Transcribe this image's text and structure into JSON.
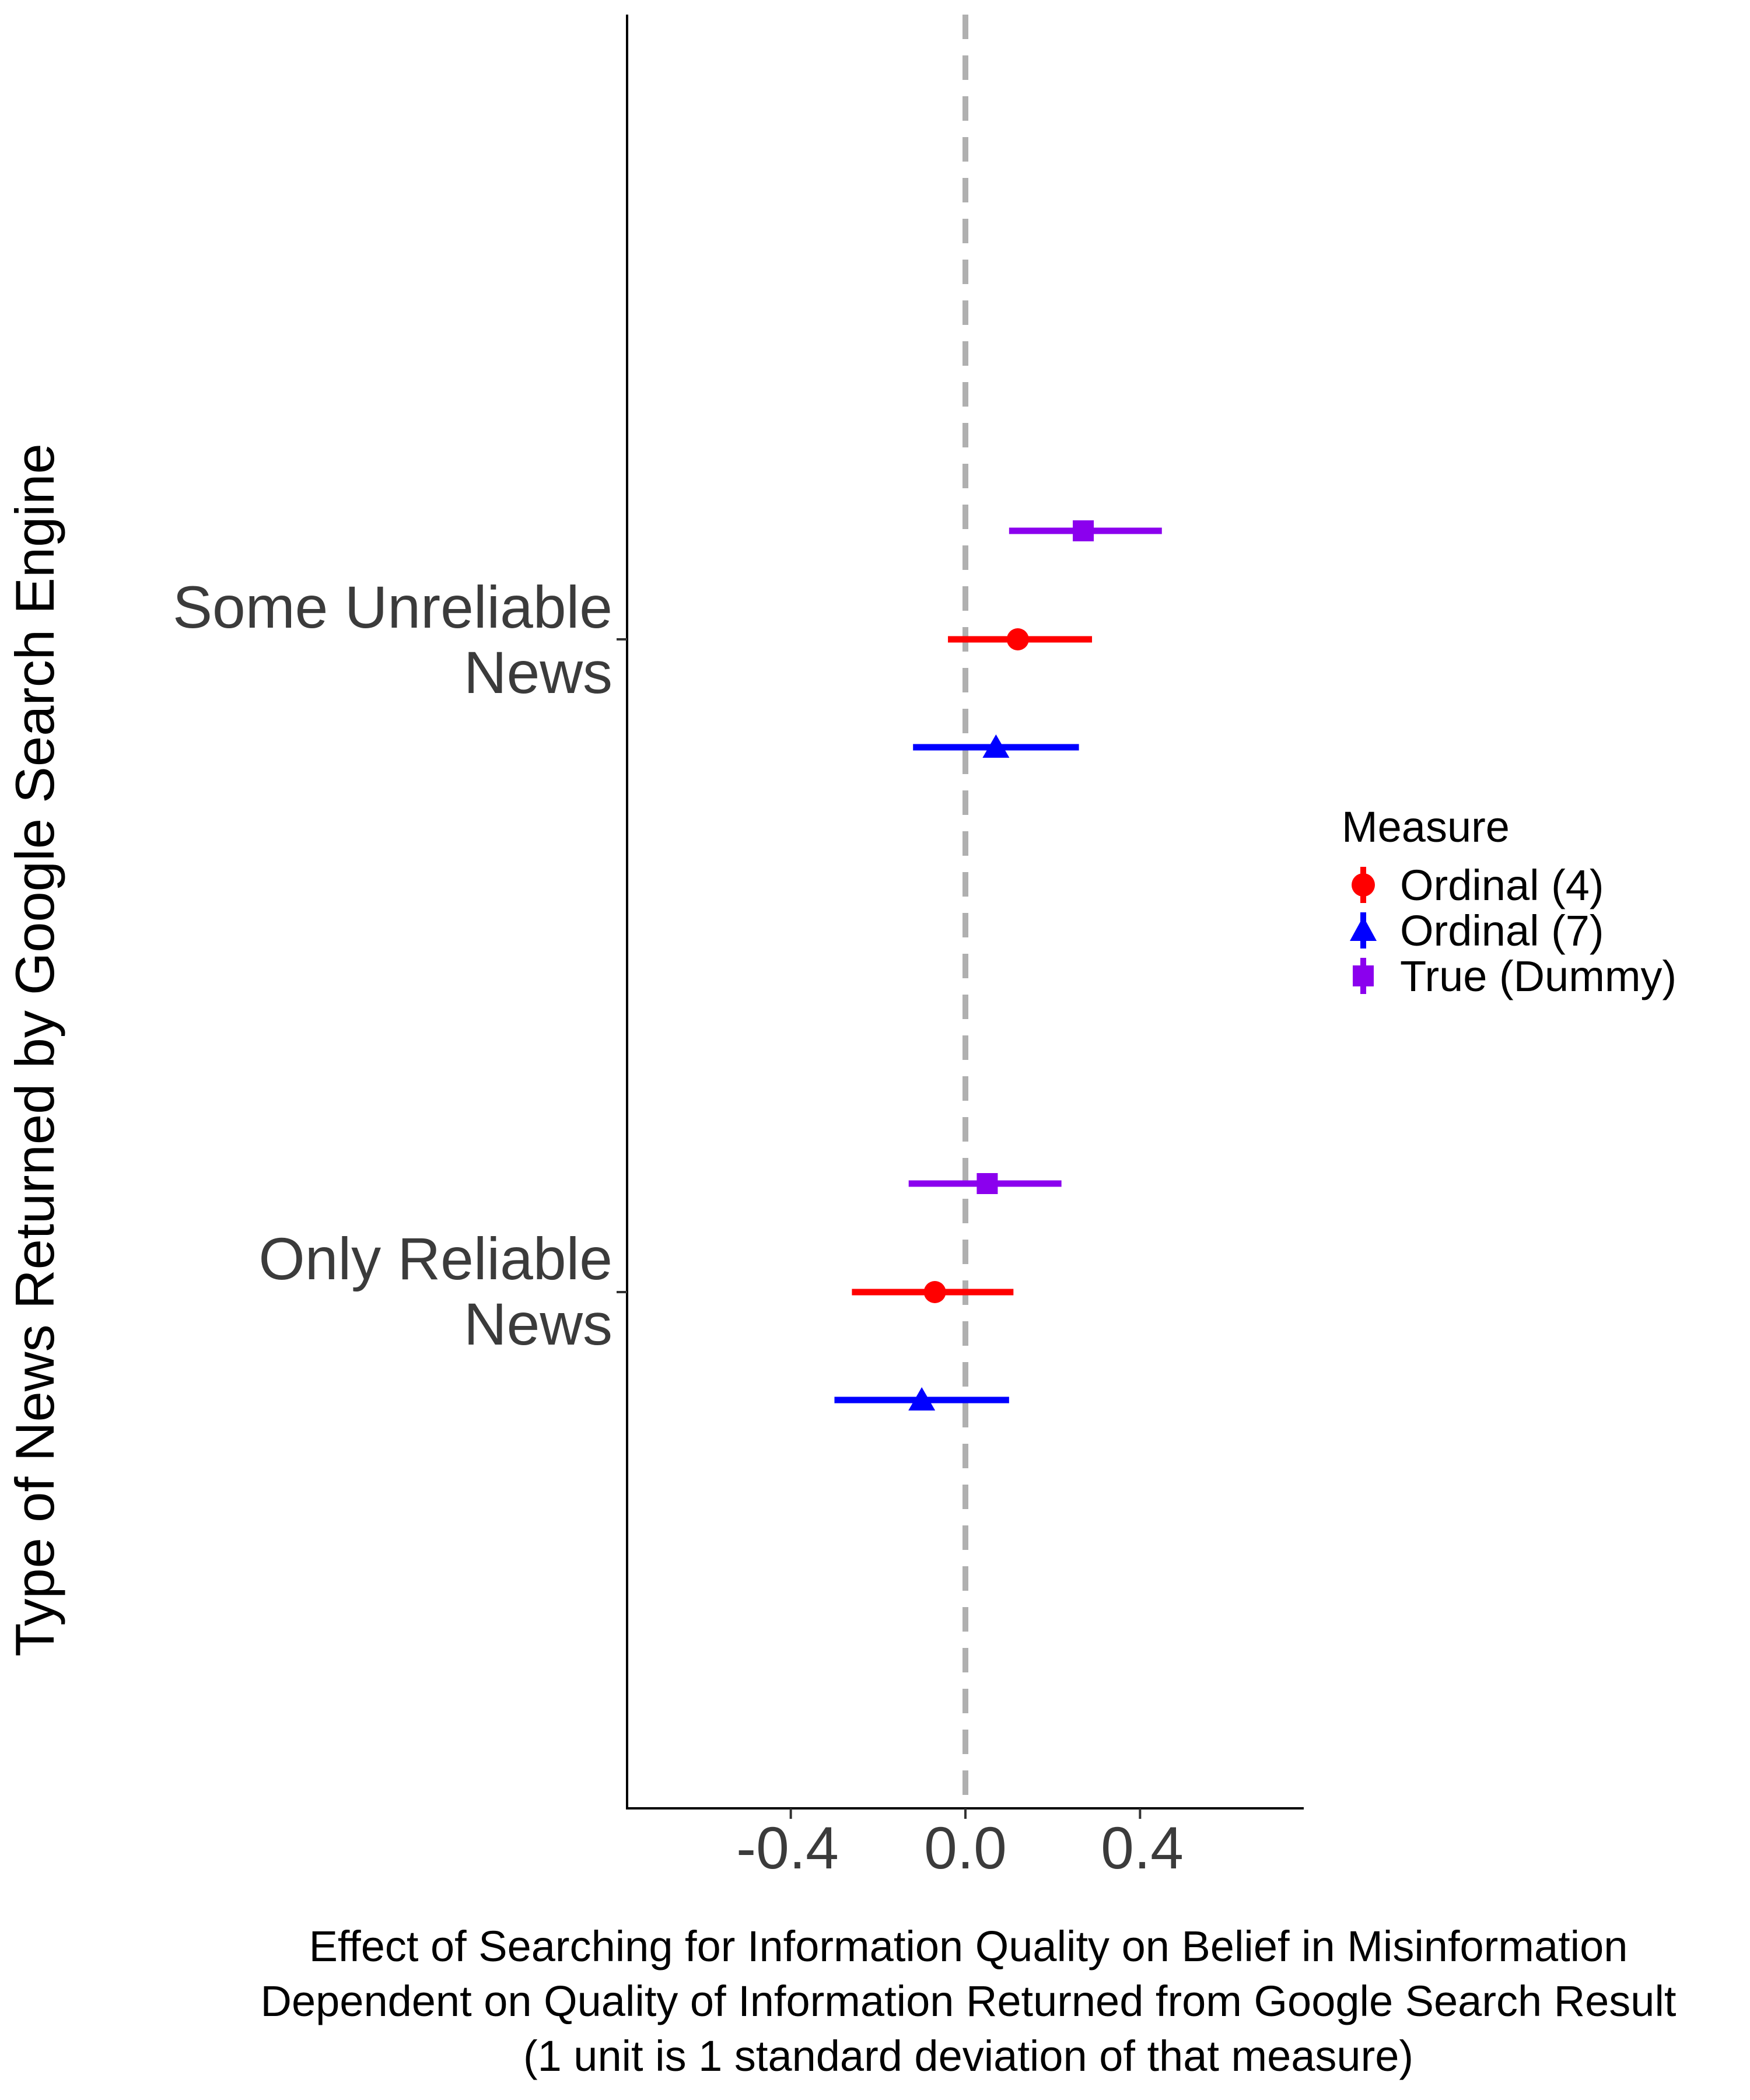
{
  "chart_data": {
    "type": "scatter",
    "subtype": "coefficient-plot-with-error-bars",
    "orientation": "horizontal",
    "xlabel_lines": [
      "Effect of Searching for Information Quality on Belief in Misinformation",
      "Dependent on Quality of Information Returned from Google Search Result",
      "(1 unit is 1 standard deviation of that measure)"
    ],
    "ylabel": "Type of News Returned by Google Search Engine",
    "xlim": [
      -0.775,
      0.775
    ],
    "x_ticks": [
      -0.4,
      0.0,
      0.4
    ],
    "x_tick_labels": [
      "-0.4",
      "0.0",
      "0.4"
    ],
    "reference_line": {
      "x": 0.0,
      "style": "dashed",
      "color": "#b0b0b0"
    },
    "categories": [
      {
        "key": "some_unreliable",
        "lines": [
          "Some Unreliable",
          "News"
        ]
      },
      {
        "key": "only_reliable",
        "lines": [
          "Only Reliable",
          "News"
        ]
      }
    ],
    "legend": {
      "title": "Measure",
      "placement": "right"
    },
    "series": [
      {
        "name": "Ordinal (4)",
        "color": "#ff0000",
        "marker": "circle",
        "points": [
          {
            "category": "some_unreliable",
            "estimate": 0.12,
            "ci_low": -0.04,
            "ci_high": 0.29
          },
          {
            "category": "only_reliable",
            "estimate": -0.07,
            "ci_low": -0.26,
            "ci_high": 0.11
          }
        ]
      },
      {
        "name": "Ordinal (7)",
        "color": "#0000ff",
        "marker": "triangle",
        "points": [
          {
            "category": "some_unreliable",
            "estimate": 0.07,
            "ci_low": -0.12,
            "ci_high": 0.26
          },
          {
            "category": "only_reliable",
            "estimate": -0.1,
            "ci_low": -0.3,
            "ci_high": 0.1
          }
        ]
      },
      {
        "name": "True (Dummy)",
        "color": "#8b00ee",
        "marker": "square",
        "points": [
          {
            "category": "some_unreliable",
            "estimate": 0.27,
            "ci_low": 0.1,
            "ci_high": 0.45
          },
          {
            "category": "only_reliable",
            "estimate": 0.05,
            "ci_low": -0.13,
            "ci_high": 0.22
          }
        ]
      }
    ]
  }
}
